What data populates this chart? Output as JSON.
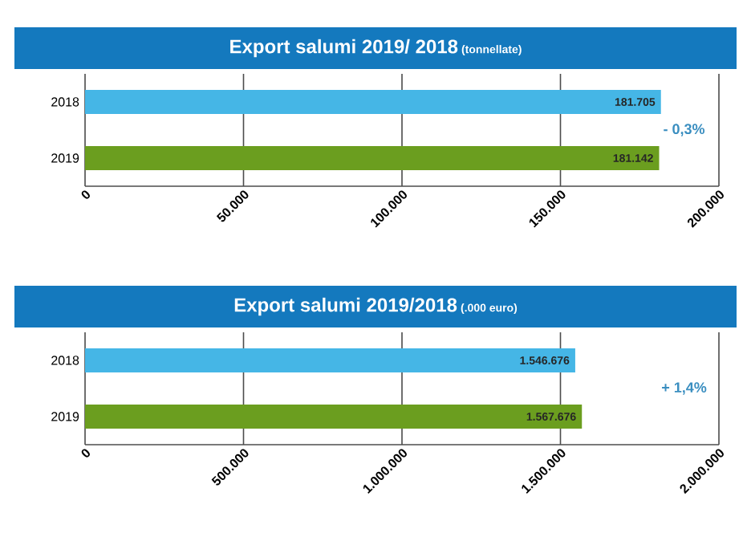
{
  "chart_data": [
    {
      "type": "bar",
      "orientation": "horizontal",
      "title": "Export salumi 2019/ 2018",
      "subtitle": "(tonnellate)",
      "categories": [
        "2018",
        "2019"
      ],
      "values": [
        181705,
        181142
      ],
      "colors": [
        "#45b6e6",
        "#6b9e1f"
      ],
      "value_labels": [
        "181.705",
        "181.142"
      ],
      "xlim": [
        0,
        200000
      ],
      "xticks": [
        0,
        {
          "value": 50000,
          "label": "50.000"
        },
        {
          "value": 100000,
          "label": "100.000"
        },
        {
          "value": 150000,
          "label": "150.000"
        },
        {
          "value": 200000,
          "label": "200.000"
        }
      ],
      "grid": "x",
      "annotations": [
        "- 0,3%"
      ]
    },
    {
      "type": "bar",
      "orientation": "horizontal",
      "title": "Export salumi 2019/2018",
      "subtitle": "(.000 euro)",
      "categories": [
        "2018",
        "2019"
      ],
      "values": [
        1546676,
        1567676
      ],
      "colors": [
        "#45b6e6",
        "#6b9e1f"
      ],
      "value_labels": [
        "1.546.676",
        "1.567.676"
      ],
      "xlim": [
        0,
        2000000
      ],
      "xticks": [
        0,
        {
          "value": 500000,
          "label": "500.000"
        },
        {
          "value": 1000000,
          "label": "1.000.000"
        },
        {
          "value": 1500000,
          "label": "1.500.000"
        },
        {
          "value": 2000000,
          "label": "2.000.000"
        }
      ],
      "grid": "x",
      "annotations": [
        "+ 1,4%"
      ]
    }
  ]
}
